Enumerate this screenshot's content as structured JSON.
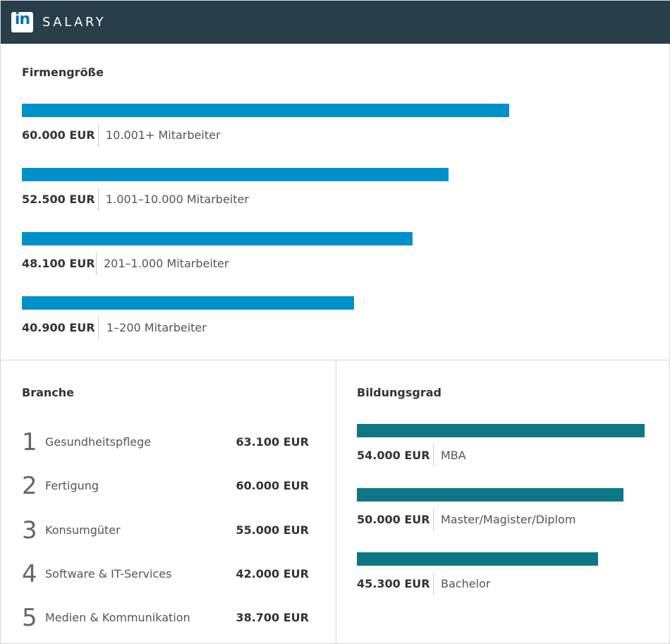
{
  "header": {
    "logo_text": "in",
    "brand": "SALARY",
    "header_bg": "#283e4a",
    "logo_color": "#0073b1"
  },
  "chart_data": [
    {
      "type": "bar",
      "orientation": "horizontal",
      "title": "Firmengröße",
      "color": "#0091ca",
      "categories": [
        "10.001+ Mitarbeiter",
        "1.001–10.000 Mitarbeiter",
        "201–1.000 Mitarbeiter",
        "1–200 Mitarbeiter"
      ],
      "values": [
        60000,
        52500,
        48100,
        40900
      ],
      "value_labels": [
        "60.000 EUR",
        "52.500 EUR",
        "48.100 EUR",
        "40.900 EUR"
      ],
      "unit": "EUR"
    },
    {
      "type": "table",
      "title": "Branche",
      "rows": [
        {
          "rank": "1",
          "name": "Gesundheitspflege",
          "value": 63100,
          "value_label": "63.100 EUR"
        },
        {
          "rank": "2",
          "name": "Fertigung",
          "value": 60000,
          "value_label": "60.000 EUR"
        },
        {
          "rank": "3",
          "name": "Konsumgüter",
          "value": 55000,
          "value_label": "55.000 EUR"
        },
        {
          "rank": "4",
          "name": "Software & IT-Services",
          "value": 42000,
          "value_label": "42.000 EUR"
        },
        {
          "rank": "5",
          "name": "Medien & Kommunikation",
          "value": 38700,
          "value_label": "38.700 EUR"
        }
      ]
    },
    {
      "type": "bar",
      "orientation": "horizontal",
      "title": "Bildungsgrad",
      "color": "#0e7786",
      "categories": [
        "MBA",
        "Master/Magister/Diplom",
        "Bachelor"
      ],
      "values": [
        54000,
        50000,
        45300
      ],
      "value_labels": [
        "54.000 EUR",
        "50.000 EUR",
        "45.300 EUR"
      ],
      "unit": "EUR"
    }
  ]
}
